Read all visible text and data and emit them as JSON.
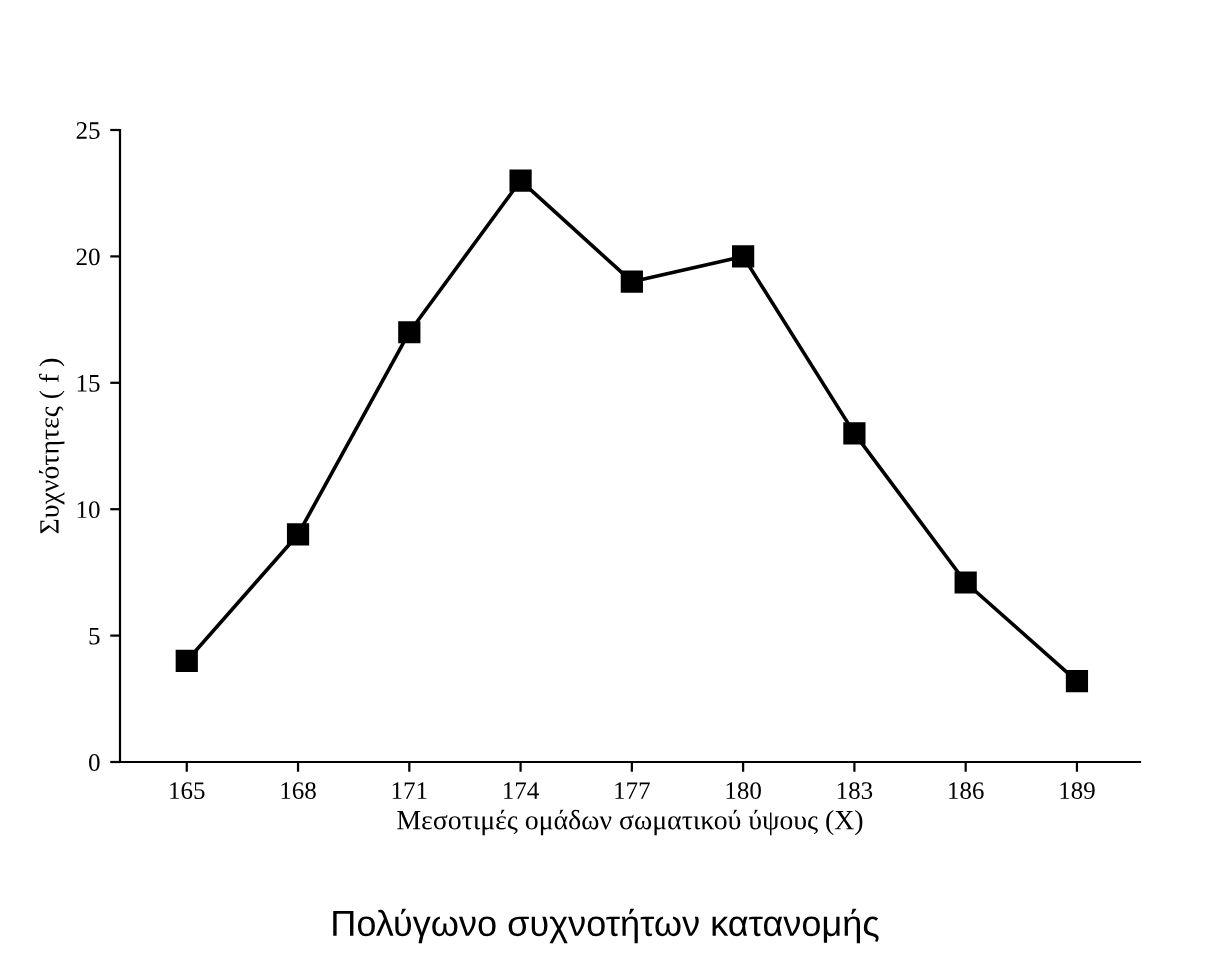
{
  "chart_data": {
    "type": "line",
    "title": "Πολύγωνο συχνοτήτων κατανομής",
    "xlabel": "Μεσοτιμές ομάδων σωματικού ύψους (Χ)",
    "ylabel": "Συχνότητες ( f )",
    "x": [
      165,
      168,
      171,
      174,
      177,
      180,
      183,
      186,
      189
    ],
    "series": [
      {
        "color": "#000000",
        "values": [
          4,
          9,
          17,
          23,
          19,
          20,
          13,
          7.1,
          3.2
        ]
      }
    ],
    "xlim": [
      163.2,
      190.7
    ],
    "xticks": [
      165,
      168,
      171,
      174,
      177,
      180,
      183,
      186,
      189
    ],
    "ylim": [
      0,
      25
    ],
    "yticks": [
      0,
      5,
      10,
      15,
      20,
      25
    ],
    "marker": "square",
    "line_style": "solid",
    "grid": false,
    "legend": false
  }
}
